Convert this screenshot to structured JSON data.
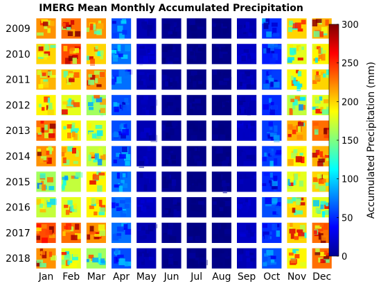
{
  "chart_data": {
    "type": "heatmap",
    "title": "IMERG Mean Monthly Accumulated Precipitation",
    "rows": [
      "2009",
      "2010",
      "2011",
      "2012",
      "2013",
      "2014",
      "2015",
      "2016",
      "2017",
      "2018"
    ],
    "columns": [
      "Jan",
      "Feb",
      "Mar",
      "Apr",
      "May",
      "Jun",
      "Jul",
      "Aug",
      "Sep",
      "Oct",
      "Nov",
      "Dec"
    ],
    "monthly_mean_estimate_mm": [
      [
        220,
        230,
        220,
        60,
        15,
        5,
        2,
        2,
        15,
        50,
        200,
        210
      ],
      [
        200,
        240,
        200,
        70,
        20,
        5,
        2,
        2,
        20,
        45,
        180,
        190
      ],
      [
        210,
        200,
        220,
        70,
        15,
        5,
        2,
        2,
        15,
        55,
        190,
        200
      ],
      [
        190,
        180,
        160,
        60,
        15,
        5,
        2,
        2,
        15,
        50,
        170,
        180
      ],
      [
        230,
        190,
        180,
        60,
        15,
        5,
        2,
        2,
        20,
        55,
        210,
        230
      ],
      [
        220,
        200,
        170,
        60,
        15,
        5,
        2,
        2,
        15,
        55,
        190,
        210
      ],
      [
        160,
        170,
        190,
        70,
        15,
        5,
        2,
        2,
        15,
        50,
        180,
        200
      ],
      [
        170,
        180,
        190,
        70,
        20,
        5,
        2,
        2,
        20,
        60,
        200,
        180
      ],
      [
        240,
        230,
        220,
        70,
        15,
        5,
        2,
        2,
        20,
        50,
        200,
        230
      ],
      [
        220,
        180,
        160,
        60,
        15,
        5,
        2,
        2,
        15,
        60,
        190,
        230
      ]
    ],
    "colorbar": {
      "label": "Accumulated Precipitation (mm)",
      "range": [
        0,
        300
      ],
      "ticks": [
        "300",
        "250",
        "200",
        "150",
        "100",
        "50",
        "0"
      ],
      "colormap": "jet"
    },
    "grid": false,
    "legend_position": "right"
  }
}
